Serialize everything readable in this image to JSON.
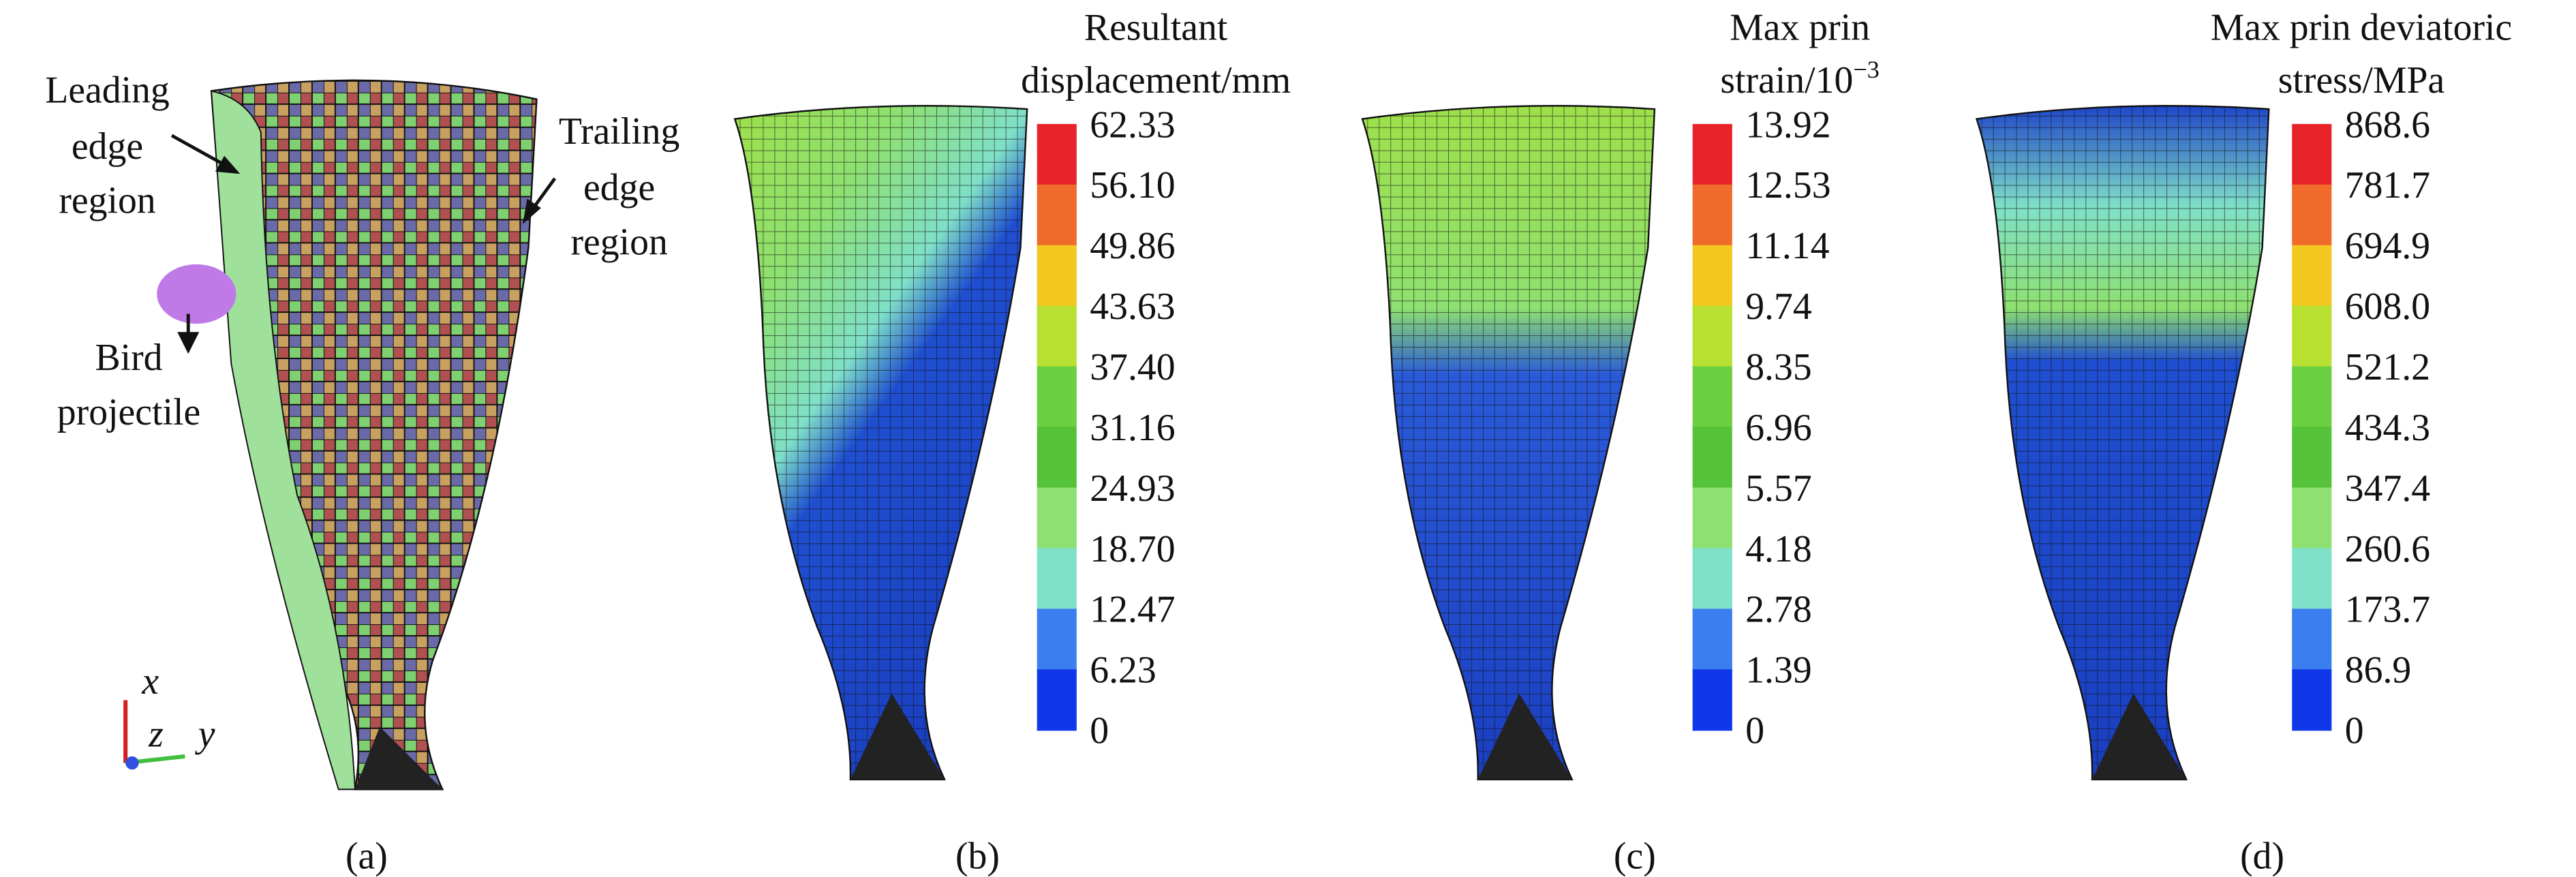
{
  "panels": [
    {
      "label": "(a)",
      "leading_edge": [
        "Leading",
        "edge",
        "region"
      ],
      "trailing_edge": [
        "Trailing",
        "edge",
        "region"
      ],
      "bird": [
        "Bird",
        "projectile"
      ],
      "axes": [
        "x",
        "z",
        "y"
      ]
    },
    {
      "label": "(b)",
      "title": [
        "Resultant",
        "displacement/mm"
      ],
      "colorbar": [
        "62.33",
        "56.10",
        "49.86",
        "43.63",
        "37.40",
        "31.16",
        "24.93",
        "18.70",
        "12.47",
        "6.23",
        "0"
      ]
    },
    {
      "label": "(c)",
      "title": [
        "Max prin",
        "strain/10"
      ],
      "title_sup": "−3",
      "colorbar": [
        "13.92",
        "12.53",
        "11.14",
        "9.74",
        "8.35",
        "6.96",
        "5.57",
        "4.18",
        "2.78",
        "1.39",
        "0"
      ]
    },
    {
      "label": "(d)",
      "title": [
        "Max prin deviatoric",
        "stress/MPa"
      ],
      "colorbar": [
        "868.6",
        "781.7",
        "694.9",
        "608.0",
        "521.2",
        "434.3",
        "347.4",
        "260.6",
        "173.7",
        "86.9",
        "0"
      ]
    }
  ]
}
